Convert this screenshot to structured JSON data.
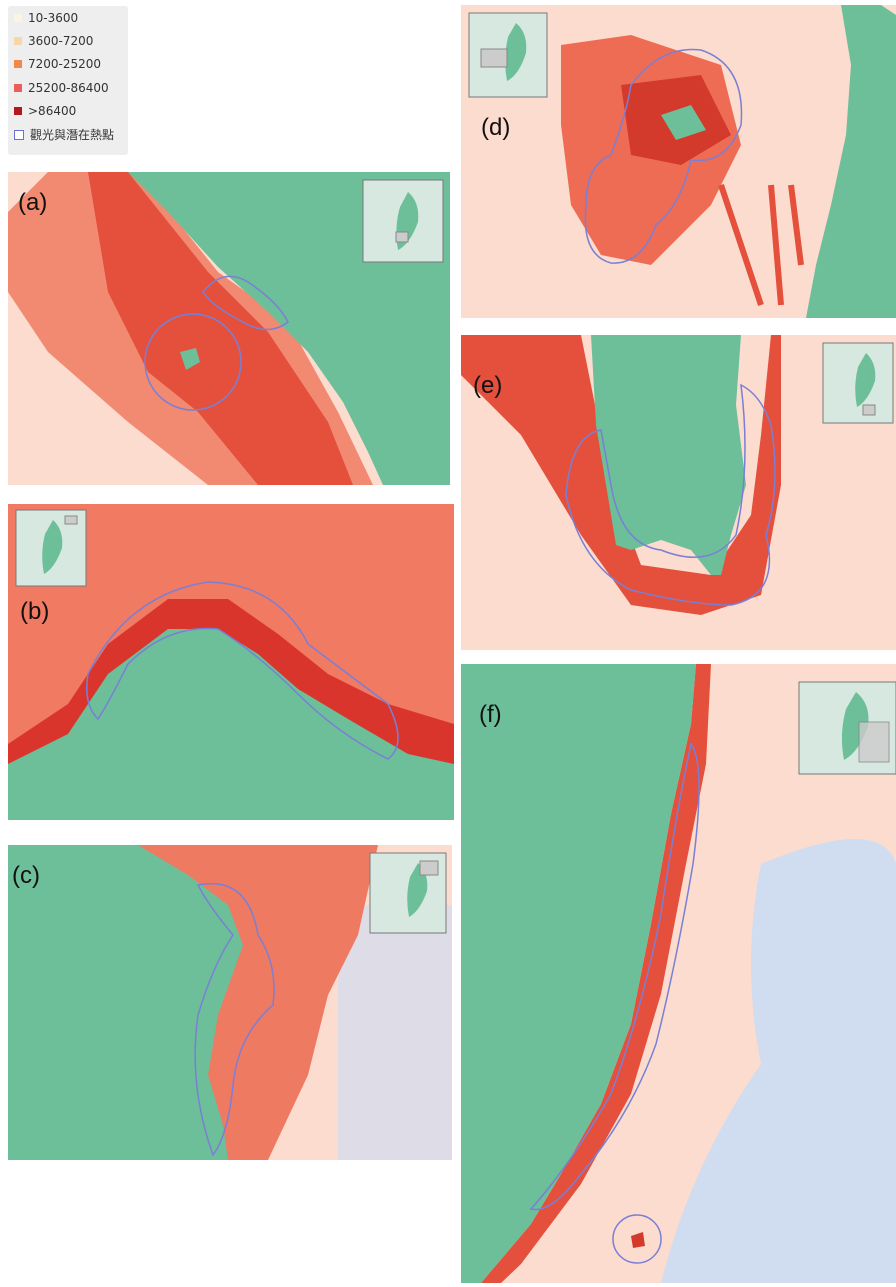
{
  "legend": {
    "items": [
      {
        "label": "10-3600",
        "color": "#fdf3e4"
      },
      {
        "label": "3600-7200",
        "color": "#f6d7a6"
      },
      {
        "label": "7200-25200",
        "color": "#ef8a4c"
      },
      {
        "label": "25200-86400",
        "color": "#e85d5d"
      },
      {
        "label": ">86400",
        "color": "#b5161b"
      },
      {
        "label": "觀光與潛在熱點",
        "color": "#6b6fd6"
      }
    ]
  },
  "panels": [
    {
      "label": "(a)"
    },
    {
      "label": "(b)"
    },
    {
      "label": "(c)"
    },
    {
      "label": "(d)"
    },
    {
      "label": "(e)"
    },
    {
      "label": "(f)"
    }
  ]
}
